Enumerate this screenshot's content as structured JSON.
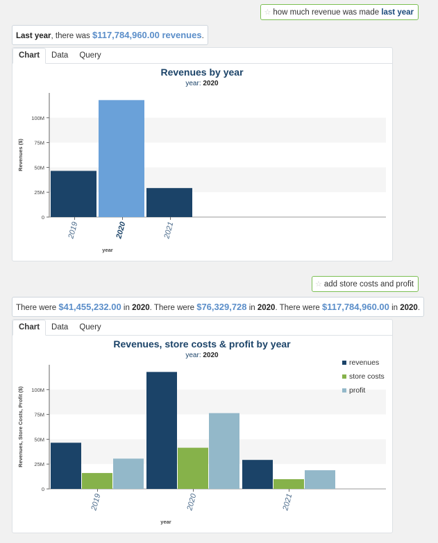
{
  "messages": {
    "q1": {
      "text": "how much revenue was made ",
      "bold": "last year"
    },
    "a1": {
      "bold": "Last year",
      "mid": ", there was ",
      "value": "$117,784,960.00 revenues",
      "end": "."
    },
    "q2": {
      "text": "add store costs and profit"
    },
    "a2": {
      "p1": "There were ",
      "v1": "$41,455,232.00",
      "p2": " in ",
      "y1": "2020",
      "p3": ". There were ",
      "v2": "$76,329,728",
      "p4": " in ",
      "y2": "2020",
      "p5": ". There were ",
      "v3": "$117,784,960.00",
      "p6": " in ",
      "y3": "2020",
      "p7": "."
    }
  },
  "tabs": {
    "chart": "Chart",
    "data": "Data",
    "query": "Query"
  },
  "colors": {
    "revenues": "#1b4368",
    "store_costs": "#86b24a",
    "profit": "#93b8c9",
    "highlight": "#6aa1d9",
    "title": "#1b4368"
  },
  "chart_data": [
    {
      "type": "bar",
      "title": "Revenues by year",
      "subtitle_label": "year: ",
      "subtitle_value": "2020",
      "xlabel": "year",
      "ylabel": "Revenues ($)",
      "categories": [
        "2019",
        "2020",
        "2021"
      ],
      "highlight_category": "2020",
      "yticks": [
        "0",
        "25M",
        "50M",
        "75M",
        "100M"
      ],
      "ylim": [
        0,
        125000000
      ],
      "series": [
        {
          "values": [
            46500000,
            117784960,
            29200000
          ]
        }
      ]
    },
    {
      "type": "bar",
      "title": "Revenues, store costs & profit by year",
      "subtitle_label": "year: ",
      "subtitle_value": "2020",
      "xlabel": "year",
      "ylabel": "Revenues, Store Costs, Profit ($)",
      "categories": [
        "2019",
        "2020",
        "2021"
      ],
      "yticks": [
        "0",
        "25M",
        "50M",
        "75M",
        "100M"
      ],
      "ylim": [
        0,
        125000000
      ],
      "legend_position": "top-right",
      "series": [
        {
          "name": "revenues",
          "values": [
            46500000,
            117784960,
            29200000
          ]
        },
        {
          "name": "store costs",
          "values": [
            16000000,
            41455232,
            9800000
          ]
        },
        {
          "name": "profit",
          "values": [
            30500000,
            76329728,
            18800000
          ]
        }
      ]
    }
  ]
}
